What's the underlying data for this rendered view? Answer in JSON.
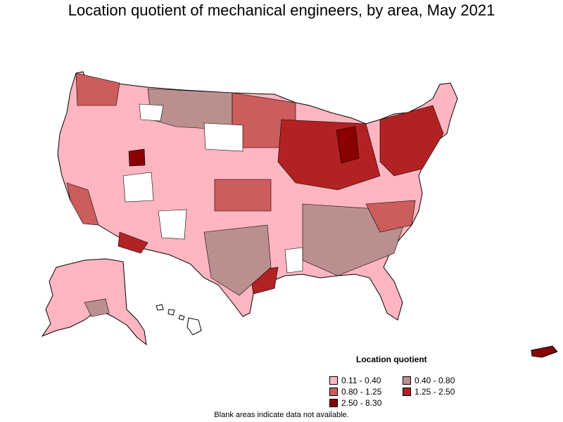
{
  "title": "Location quotient of mechanical engineers, by area, May 2021",
  "legend": {
    "title": "Location quotient",
    "items": [
      {
        "label": "0.11 - 0.40",
        "color": "#ffb6c1"
      },
      {
        "label": "0.40 - 0.80",
        "color": "#bc8f8f"
      },
      {
        "label": "0.80 - 1.25",
        "color": "#cd5c5c"
      },
      {
        "label": "1.25 - 2.50",
        "color": "#b22222"
      },
      {
        "label": "2.50 - 8.30",
        "color": "#8b0000"
      }
    ]
  },
  "footnote": "Blank areas indicate data not available.",
  "colors": {
    "border": "#000000",
    "blank": "#ffffff"
  }
}
